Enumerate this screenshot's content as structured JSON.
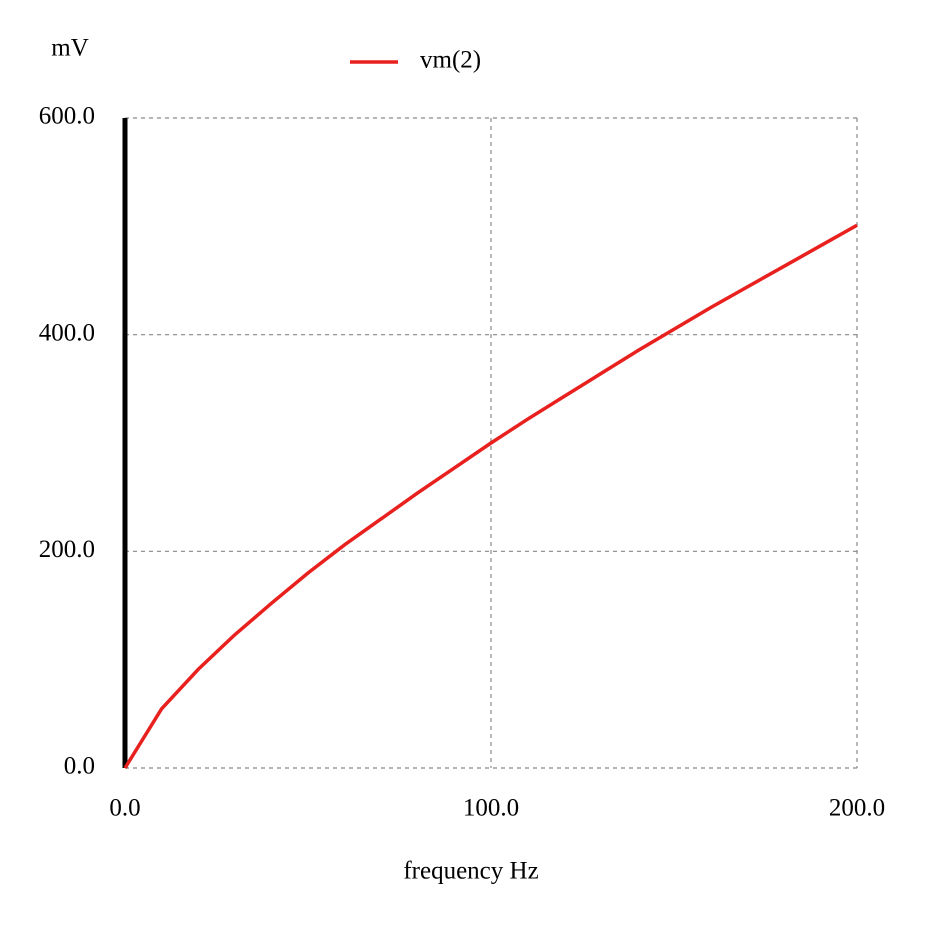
{
  "chart_data": {
    "type": "line",
    "y_label": "mV",
    "x_label": "frequency Hz",
    "x": [
      0,
      10,
      20,
      30,
      40,
      50,
      60,
      70,
      80,
      90,
      100,
      110,
      120,
      130,
      140,
      150,
      160,
      170,
      180,
      190,
      200
    ],
    "series": [
      {
        "name": "vm(2)",
        "color": "#e8201e",
        "values": [
          0,
          54.6,
          91,
          123,
          152,
          180,
          206,
          230,
          254,
          277,
          300,
          322,
          343,
          364,
          385,
          405,
          425,
          444,
          463,
          482,
          501
        ]
      }
    ],
    "xlim": [
      0,
      200
    ],
    "ylim": [
      0,
      600
    ],
    "xticks": [
      {
        "value": 0,
        "label": "0.0"
      },
      {
        "value": 100,
        "label": "100.0"
      },
      {
        "value": 200,
        "label": "200.0"
      }
    ],
    "yticks": [
      {
        "value": 0,
        "label": "0.0"
      },
      {
        "value": 200,
        "label": "200.0"
      },
      {
        "value": 400,
        "label": "400.0"
      },
      {
        "value": 600,
        "label": "600.0"
      }
    ],
    "grid": true
  }
}
